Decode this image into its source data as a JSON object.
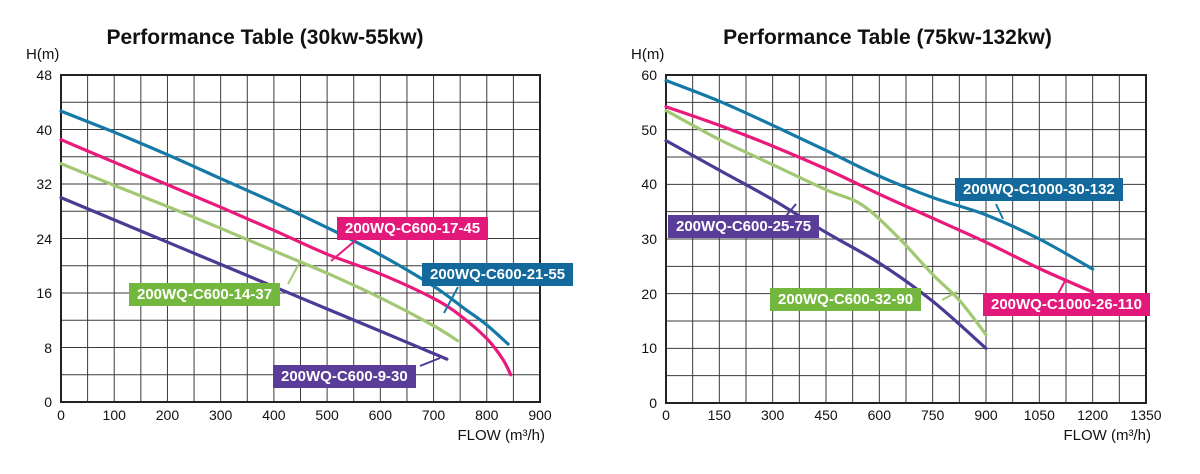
{
  "chart_data": [
    {
      "type": "line",
      "title": "Performance Table (30kw-55kw)",
      "xlabel": "FLOW (m³/h)",
      "ylabel": "H(m)",
      "xlim": [
        0,
        900
      ],
      "ylim": [
        0,
        48
      ],
      "x_ticks": [
        0,
        100,
        200,
        300,
        400,
        500,
        600,
        700,
        800,
        900
      ],
      "y_ticks": [
        48,
        40,
        32,
        24,
        16,
        8,
        0
      ],
      "x_minor_step": 50,
      "y_minor_step": 4,
      "grid": "on",
      "legend_position": "inline-boxed-labels",
      "series": [
        {
          "name": "200WQ-C600-21-55",
          "color": "#1579A8",
          "box_color": "#13699B",
          "points": [
            [
              0,
              42.7
            ],
            [
              100,
              39.6
            ],
            [
              200,
              36.3
            ],
            [
              300,
              32.8
            ],
            [
              400,
              29.3
            ],
            [
              500,
              25.6
            ],
            [
              600,
              21.6
            ],
            [
              700,
              17.0
            ],
            [
              760,
              13.6
            ],
            [
              800,
              11.3
            ],
            [
              840,
              8.5
            ]
          ]
        },
        {
          "name": "200WQ-C600-17-45",
          "color": "#EA1A7C",
          "box_color": "#E2187A",
          "points": [
            [
              0,
              38.5
            ],
            [
              100,
              35.2
            ],
            [
              200,
              31.9
            ],
            [
              300,
              28.6
            ],
            [
              400,
              25.2
            ],
            [
              500,
              21.7
            ],
            [
              600,
              18.8
            ],
            [
              700,
              15.2
            ],
            [
              750,
              12.7
            ],
            [
              800,
              9.3
            ],
            [
              830,
              6.3
            ],
            [
              845,
              4.0
            ]
          ]
        },
        {
          "name": "200WQ-C600-14-37",
          "color": "#A2C873",
          "box_color": "#74B73F",
          "points": [
            [
              0,
              35.0
            ],
            [
              100,
              31.8
            ],
            [
              200,
              28.7
            ],
            [
              300,
              25.5
            ],
            [
              400,
              22.2
            ],
            [
              500,
              18.9
            ],
            [
              600,
              15.3
            ],
            [
              700,
              11.2
            ],
            [
              745,
              9.0
            ]
          ]
        },
        {
          "name": "200WQ-C600-9-30",
          "color": "#4C3A95",
          "box_color": "#5A3D98",
          "points": [
            [
              0,
              30.0
            ],
            [
              150,
              25.1
            ],
            [
              300,
              20.2
            ],
            [
              450,
              15.3
            ],
            [
              600,
              10.4
            ],
            [
              725,
              6.3
            ]
          ]
        }
      ]
    },
    {
      "type": "line",
      "title": "Performance Table (75kw-132kw)",
      "xlabel": "FLOW (m³/h)",
      "ylabel": "H(m)",
      "xlim": [
        0,
        1350
      ],
      "ylim": [
        0,
        60
      ],
      "x_ticks": [
        0,
        150,
        300,
        450,
        600,
        750,
        900,
        1050,
        1200,
        1350
      ],
      "y_ticks": [
        60,
        50,
        40,
        30,
        20,
        10,
        0
      ],
      "x_minor_step": 75,
      "y_minor_step": 5,
      "grid": "on",
      "legend_position": "inline-boxed-labels",
      "series": [
        {
          "name": "200WQ-C1000-30-132",
          "color": "#1579A8",
          "box_color": "#13699B",
          "points": [
            [
              0,
              59.0
            ],
            [
              150,
              55.2
            ],
            [
              300,
              50.8
            ],
            [
              450,
              46.2
            ],
            [
              600,
              41.5
            ],
            [
              750,
              37.6
            ],
            [
              900,
              34.4
            ],
            [
              1050,
              30.0
            ],
            [
              1200,
              24.5
            ]
          ]
        },
        {
          "name": "200WQ-C1000-26-110",
          "color": "#EA1A7C",
          "box_color": "#E2187A",
          "points": [
            [
              0,
              54.2
            ],
            [
              150,
              50.8
            ],
            [
              300,
              47.0
            ],
            [
              450,
              42.8
            ],
            [
              600,
              38.2
            ],
            [
              750,
              33.8
            ],
            [
              900,
              29.4
            ],
            [
              1050,
              24.6
            ],
            [
              1200,
              20.3
            ]
          ]
        },
        {
          "name": "200WQ-C600-32-90",
          "color": "#A2C873",
          "box_color": "#74B73F",
          "points": [
            [
              0,
              53.5
            ],
            [
              150,
              48.2
            ],
            [
              300,
              43.6
            ],
            [
              450,
              39.0
            ],
            [
              550,
              36.3
            ],
            [
              650,
              30.5
            ],
            [
              750,
              23.5
            ],
            [
              825,
              18.8
            ],
            [
              900,
              12.5
            ]
          ]
        },
        {
          "name": "200WQ-C600-25-75",
          "color": "#4C3A95",
          "box_color": "#5A3D98",
          "points": [
            [
              0,
              48.0
            ],
            [
              150,
              42.6
            ],
            [
              300,
              37.2
            ],
            [
              450,
              31.2
            ],
            [
              600,
              25.6
            ],
            [
              750,
              18.6
            ],
            [
              900,
              10.0
            ]
          ]
        }
      ]
    }
  ],
  "style": {
    "grid_line_color": "#3b3b3b",
    "grid_border_color": "#222222",
    "text_color": "#111111",
    "background": "#ffffff"
  }
}
